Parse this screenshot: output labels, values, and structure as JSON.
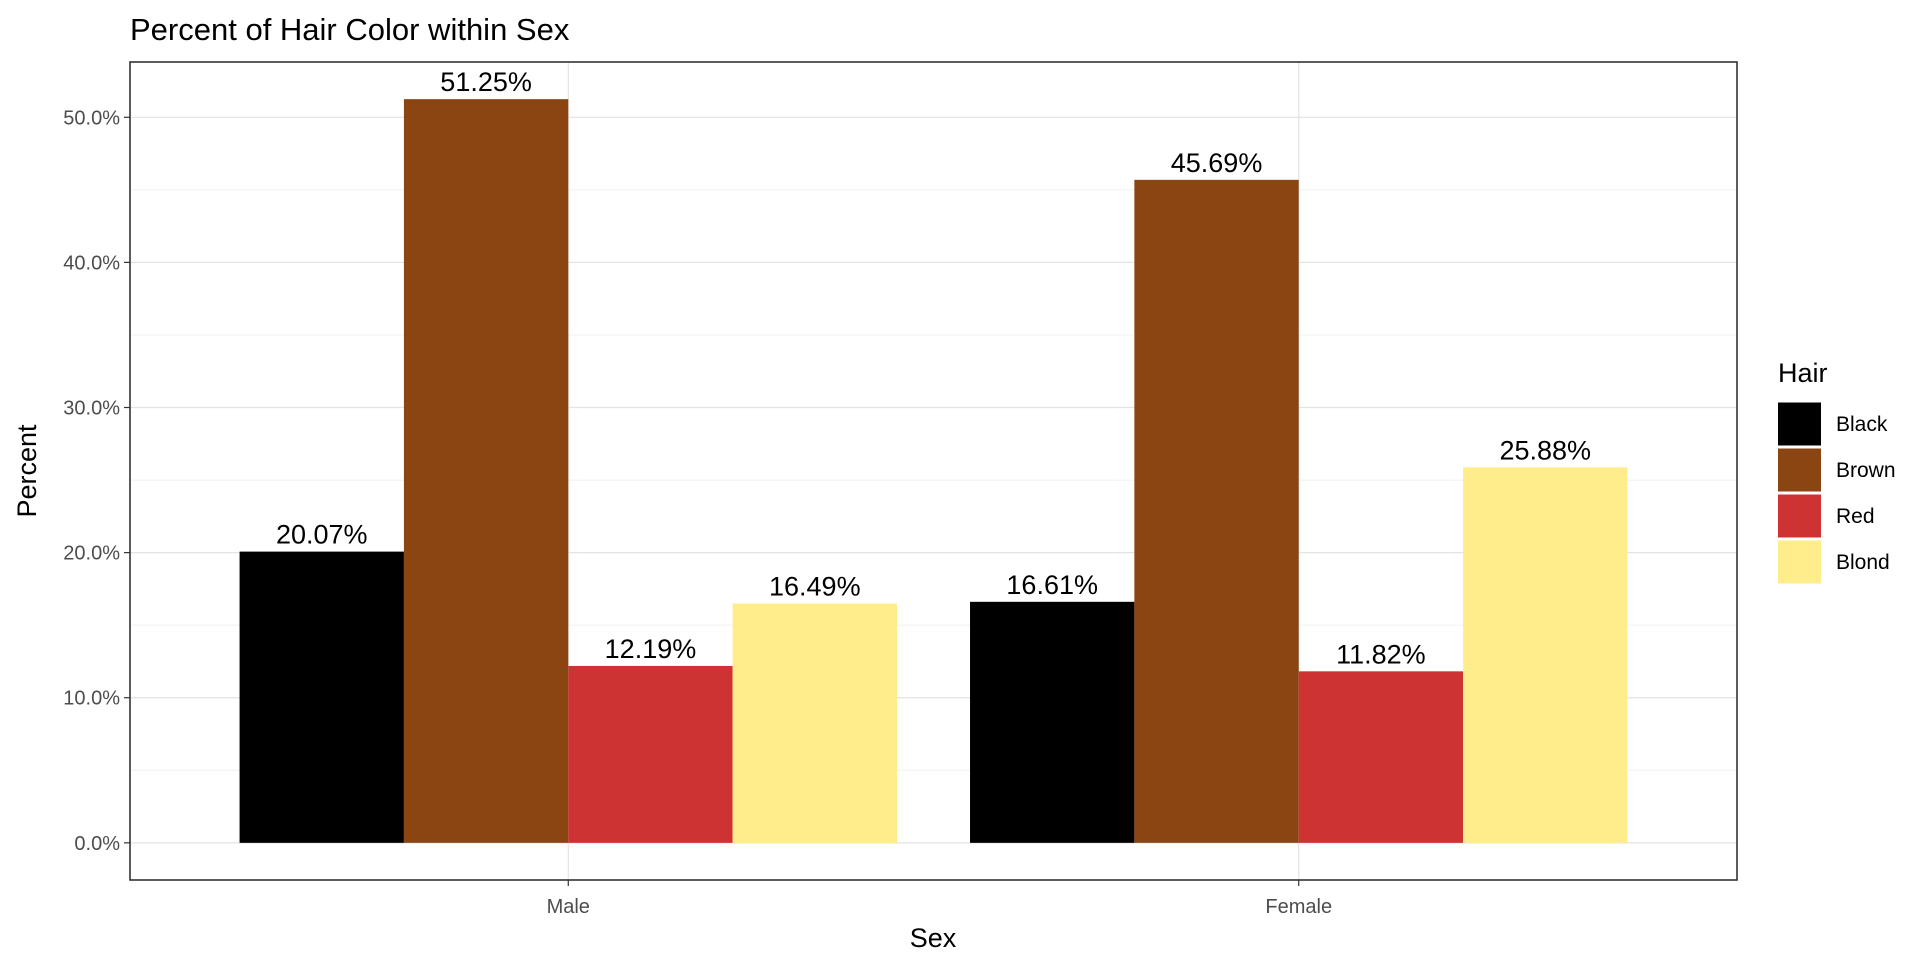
{
  "chart_data": {
    "type": "bar",
    "title": "Percent of Hair Color within Sex",
    "xlabel": "Sex",
    "ylabel": "Percent",
    "categories": [
      "Male",
      "Female"
    ],
    "series": [
      {
        "name": "Black",
        "color": "#000000",
        "values": [
          20.07,
          16.61
        ],
        "labels": [
          "20.07%",
          "16.61%"
        ]
      },
      {
        "name": "Brown",
        "color": "#8b4513",
        "values": [
          51.25,
          45.69
        ],
        "labels": [
          "51.25%",
          "45.69%"
        ]
      },
      {
        "name": "Red",
        "color": "#cd3333",
        "values": [
          12.19,
          11.82
        ],
        "labels": [
          "12.19%",
          "11.82%"
        ]
      },
      {
        "name": "Blond",
        "color": "#ffec8b",
        "values": [
          16.49,
          25.88
        ],
        "labels": [
          "16.49%",
          "25.88%"
        ]
      }
    ],
    "yticks": [
      0,
      10,
      20,
      30,
      40,
      50
    ],
    "ytick_labels": [
      "0.0%",
      "10.0%",
      "20.0%",
      "30.0%",
      "40.0%",
      "50.0%"
    ],
    "ylim": [
      -2.56,
      53.81
    ],
    "legend_title": "Hair",
    "legend_position": "right",
    "grid": true
  }
}
